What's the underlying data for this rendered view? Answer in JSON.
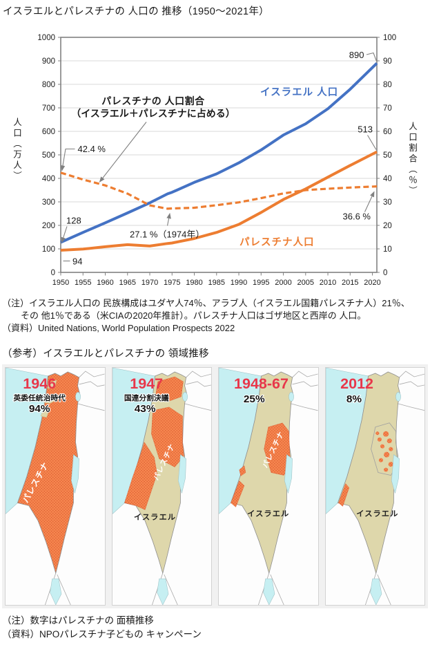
{
  "chart_title": "イスラエルとパレスチナの 人口の 推移（1950～2021年）",
  "chart_data": {
    "type": "line",
    "title": "イスラエルとパレスチナの 人口の 推移（1950～2021年）",
    "x": [
      1950,
      1955,
      1960,
      1965,
      1970,
      1974,
      1975,
      1980,
      1985,
      1990,
      1995,
      2000,
      2005,
      2010,
      2015,
      2021
    ],
    "series": [
      {
        "name": "イスラエル 人口",
        "axis": "left",
        "color": "#4472c4",
        "style": "solid",
        "values": [
          128,
          170,
          211,
          253,
          296,
          334,
          341,
          383,
          419,
          466,
          521,
          584,
          632,
          696,
          779,
          890
        ]
      },
      {
        "name": "パレスチナ人口",
        "axis": "left",
        "color": "#ed7d31",
        "style": "solid",
        "values": [
          94,
          99,
          109,
          118,
          112,
          123,
          125,
          144,
          170,
          204,
          255,
          310,
          355,
          405,
          455,
          513
        ]
      },
      {
        "name": "パレスチナの 人口割合（イスラエル＋パレスチナに占める）",
        "axis": "right",
        "color": "#ed7d31",
        "style": "dashed",
        "values": [
          42.4,
          39.5,
          37.0,
          33.5,
          28.5,
          27.1,
          27.2,
          27.5,
          28.6,
          29.8,
          31.6,
          33.6,
          35.0,
          35.6,
          36.1,
          36.6
        ]
      }
    ],
    "ylabel_left": "人口（万人）",
    "ylabel_right": "人口割合（％）",
    "ylim_left": [
      0,
      1000
    ],
    "ylim_right": [
      0,
      100
    ],
    "left_ticks": [
      "1000",
      "900",
      "800",
      "700",
      "600",
      "500",
      "400",
      "300",
      "200",
      "100",
      "0"
    ],
    "right_ticks": [
      "100",
      "90",
      "80",
      "70",
      "60",
      "50",
      "40",
      "30",
      "20",
      "10",
      "0"
    ],
    "x_ticks": [
      "1950",
      "1955",
      "1960",
      "1965",
      "1970",
      "1975",
      "1980",
      "1985",
      "1990",
      "1995",
      "2000",
      "2005",
      "2010",
      "2015",
      "2020"
    ],
    "grid": true,
    "legend_position": "inline-labels",
    "annotations": {
      "israel_end": "890",
      "palestine_end": "513",
      "israel_start": "128",
      "palestine_start": "94",
      "ratio_start": "42.4 %",
      "ratio_min": "27.1 %（1974年）",
      "ratio_end": "36.6 %",
      "israel_series_label": "イスラエル 人口",
      "palestine_series_label": "パレスチナ人口",
      "ratio_label_line1": "パレスチナの 人口割合",
      "ratio_label_line2": "（イスラエル＋パレスチナに占める）"
    }
  },
  "notes": {
    "note_line1": "（注）イスラエル人口の 民族構成はユダヤ人74％、アラブ人（イスラエル国籍パレスチナ人）21％、",
    "note_line2": "その 他1％である（米CIAの2020年推計）。パレスチナ人口はゴザ地区と西岸の 人口。",
    "source": "（資料）United Nations, World Population Prospects 2022"
  },
  "maps": {
    "heading": "（参考）イスラエルとパレスチナの 領域推移",
    "colors": {
      "sea": "#c6eff2",
      "palestine_orange": "#f6874f",
      "orange_dot": "#d9572f",
      "israel_beige": "#ded7ab",
      "year_red": "#e8374a"
    },
    "panels": [
      {
        "year": "1946",
        "subtitle": "英委任統治時代",
        "percent": "94%",
        "variant": "full",
        "palestine_label": "パレスチナ",
        "israel_label": ""
      },
      {
        "year": "1947",
        "subtitle": "国連分割決議",
        "percent": "43%",
        "variant": "partition",
        "palestine_label": "パレスチナ",
        "israel_label": "イスラエル"
      },
      {
        "year": "1948-67",
        "subtitle": "",
        "percent": "25%",
        "variant": "westbank_gaza",
        "palestine_label": "パレスチナ",
        "israel_label": "イスラエル"
      },
      {
        "year": "2012",
        "subtitle": "",
        "percent": "8%",
        "variant": "fragments",
        "palestine_label": "",
        "israel_label": "イスラエル"
      }
    ],
    "note": "（注）数字はパレスチナの 面積推移",
    "source": "（資料）NPOパレスチナ子どもの キャンペーン"
  }
}
